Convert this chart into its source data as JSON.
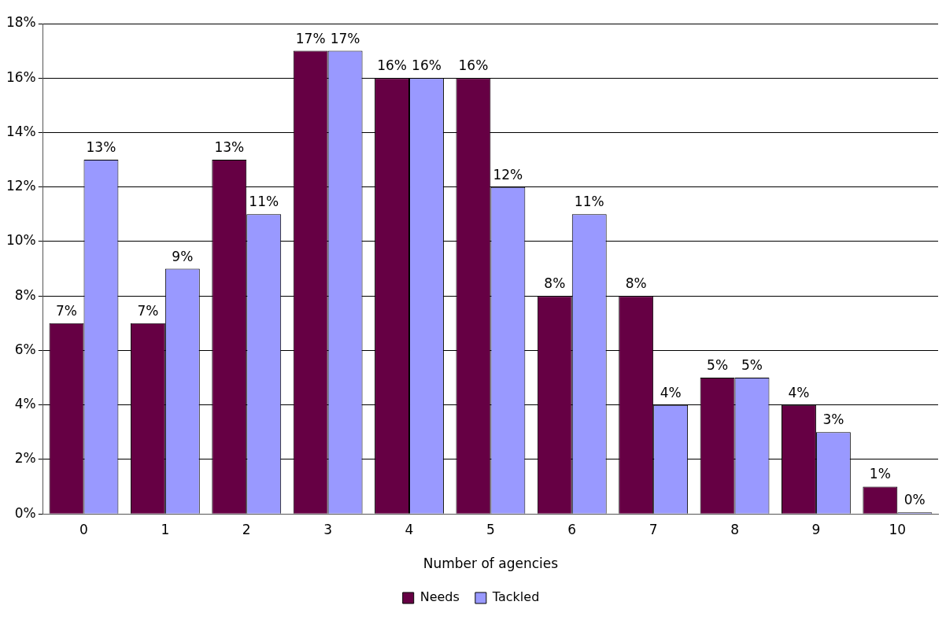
{
  "chart_data": {
    "type": "bar",
    "xlabel": "Number of agencies",
    "categories": [
      "0",
      "1",
      "2",
      "3",
      "4",
      "5",
      "6",
      "7",
      "8",
      "9",
      "10"
    ],
    "series": [
      {
        "name": "Needs",
        "color": "#660044",
        "values": [
          7,
          7,
          13,
          17,
          16,
          16,
          8,
          8,
          5,
          4,
          1
        ],
        "value_labels": [
          "7%",
          "7%",
          "13%",
          "17%",
          "16%",
          "16%",
          "8%",
          "8%",
          "5%",
          "4%",
          "1%"
        ]
      },
      {
        "name": "Tackled",
        "color": "#9999ff",
        "values": [
          13,
          9,
          11,
          17,
          16,
          12,
          11,
          4,
          5,
          3,
          0
        ],
        "value_labels": [
          "13%",
          "9%",
          "11%",
          "17%",
          "16%",
          "12%",
          "11%",
          "4%",
          "5%",
          "3%",
          "0%"
        ]
      }
    ],
    "ylim": [
      0,
      18
    ],
    "yticks": [
      {
        "value": 0,
        "label": "0%"
      },
      {
        "value": 2,
        "label": "2%"
      },
      {
        "value": 4,
        "label": "4%"
      },
      {
        "value": 6,
        "label": "6%"
      },
      {
        "value": 8,
        "label": "8%"
      },
      {
        "value": 10,
        "label": "10%"
      },
      {
        "value": 12,
        "label": "12%"
      },
      {
        "value": 14,
        "label": "14%"
      },
      {
        "value": 16,
        "label": "16%"
      },
      {
        "value": 18,
        "label": "18%"
      }
    ],
    "grid": "y",
    "legend": "bottom"
  }
}
